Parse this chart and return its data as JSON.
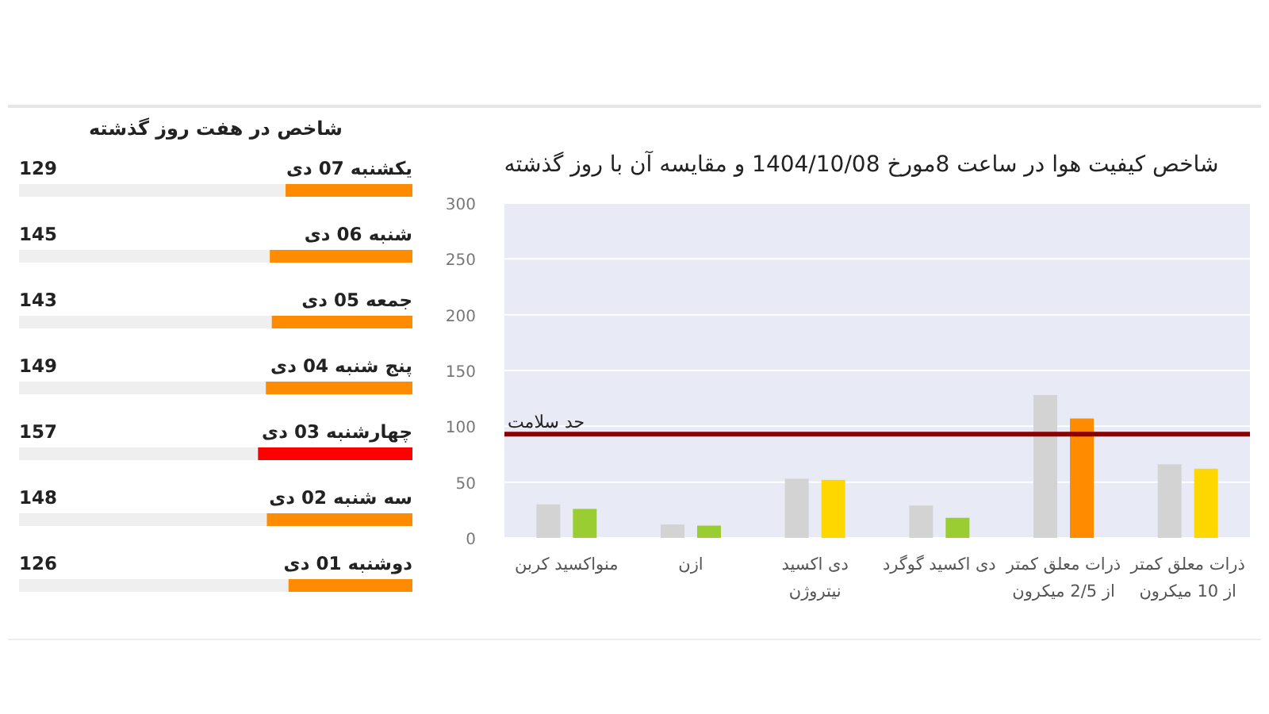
{
  "chart_data": [
    {
      "type": "bar",
      "orientation": "horizontal",
      "title": "شاخص در هفت روز گذشته",
      "categories": [
        "یکشنبه 07 دی",
        "شنبه 06 دی",
        "جمعه 05 دی",
        "پنج شنبه 04 دی",
        "چهارشنبه 03 دی",
        "سه شنبه 02 دی",
        "دوشنبه 01 دی"
      ],
      "values": [
        129,
        145,
        143,
        149,
        157,
        148,
        126
      ],
      "colors": [
        "#ff8c00",
        "#ff8c00",
        "#ff8c00",
        "#ff8c00",
        "#ff0000",
        "#ff8c00",
        "#ff8c00"
      ],
      "data_labels": true,
      "xlim": [
        400,
        0
      ],
      "tick_labels": "y"
    },
    {
      "type": "bar",
      "title": "شاخص کیفیت هوا در ساعت 8مورخ 1404/10/08 و مقایسه آن با روز گذشته",
      "categories": [
        "منواکسید کربن",
        "ازن",
        "دی اکسید نیتروژن",
        "دی اکسید گوگرد",
        "ذرات معلق کمتر از 2/5 میکرون",
        "ذرات معلق کمتر از 10 میکرون"
      ],
      "series": [
        {
          "color": "#d3d3d3",
          "values": [
            30,
            12,
            53,
            29,
            128,
            66
          ]
        },
        {
          "colors": [
            "#9acd32",
            "#9acd32",
            "#ffd700",
            "#9acd32",
            "#ff8c00",
            "#ffd700"
          ],
          "values": [
            26,
            11,
            52,
            18,
            107,
            62
          ]
        }
      ],
      "ylim": [
        0,
        300
      ],
      "yticks": [
        0,
        50,
        100,
        150,
        200,
        250,
        300
      ],
      "grid": "y",
      "ref_lines": [
        {
          "axis": "y",
          "value": 93,
          "label": "حد سلامت",
          "color": "#8b0000"
        }
      ]
    }
  ]
}
